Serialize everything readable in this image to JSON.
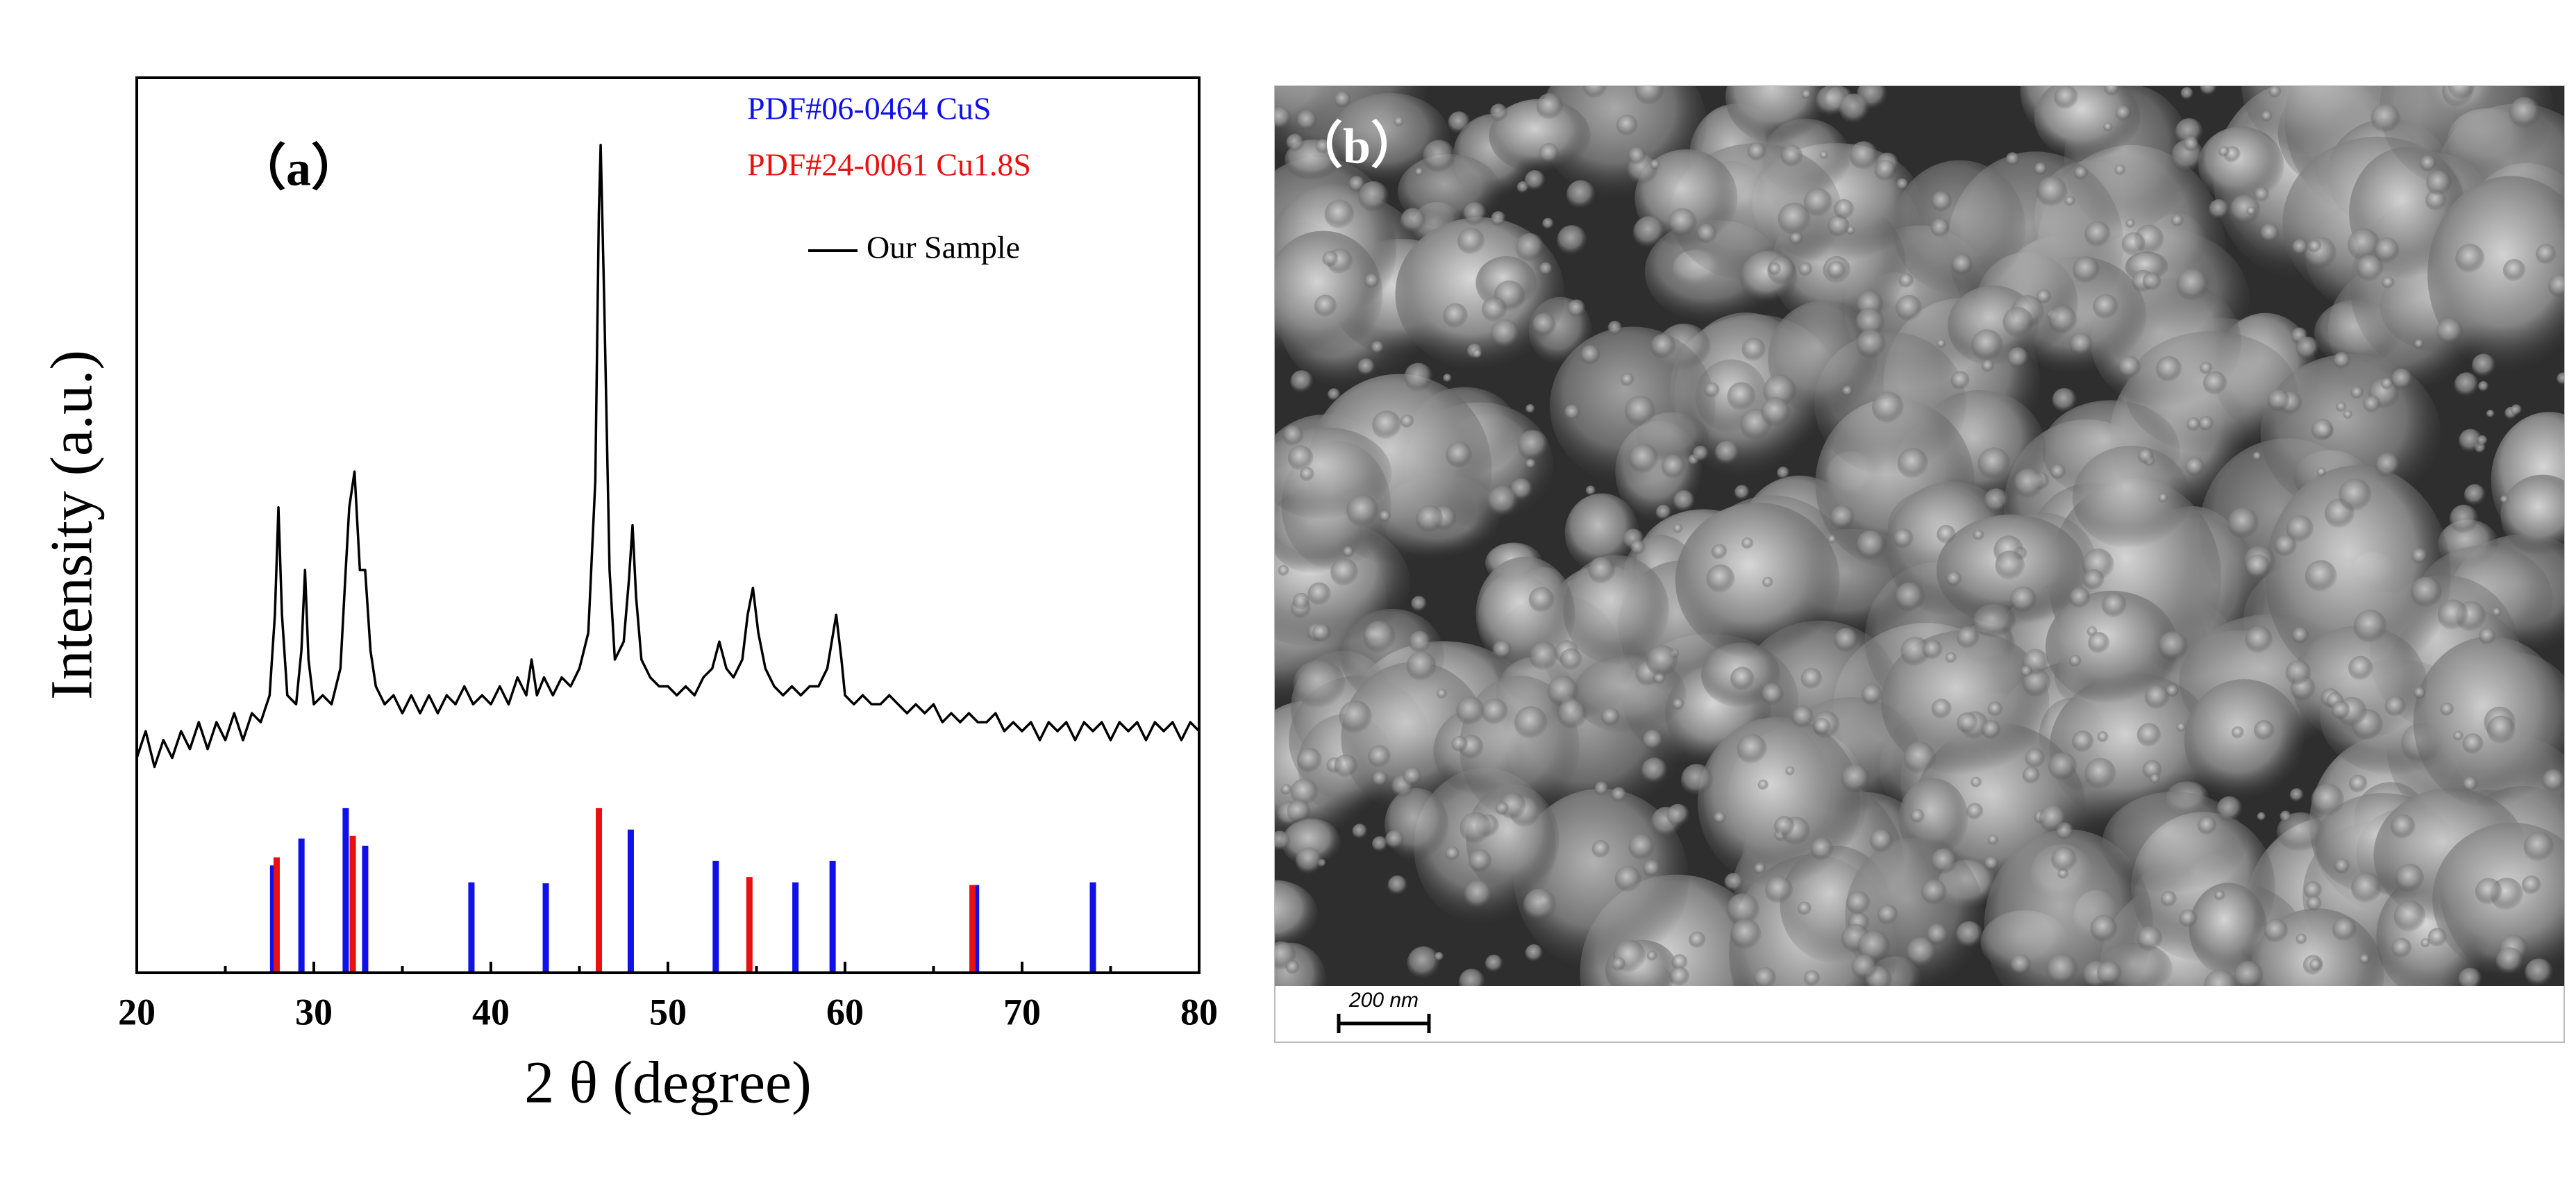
{
  "chart_data": {
    "type": "line",
    "label": "（a）",
    "xlabel": "2 θ (degree)",
    "ylabel": "Intensity (a.u.)",
    "xlim": [
      20,
      80
    ],
    "xticks": [
      20,
      30,
      40,
      50,
      60,
      70,
      80
    ],
    "xminor": [
      25,
      35,
      45,
      55,
      65,
      75
    ],
    "ylim": [
      0,
      100
    ],
    "series": [
      {
        "name": "PDF#06-0464  CuS",
        "color": "#1010e8",
        "kind": "stick",
        "x": [
          27.7,
          29.3,
          31.8,
          32.9,
          38.9,
          43.1,
          47.9,
          52.7,
          57.2,
          59.3,
          67.4,
          74.0
        ],
        "values": [
          12,
          15,
          18.4,
          14.2,
          10.1,
          10,
          16,
          12.5,
          10.1,
          12.5,
          9.8,
          10.1
        ]
      },
      {
        "name": "PDF#24-0061  Cu1.8S",
        "color": "#e81010",
        "kind": "stick",
        "x": [
          27.9,
          32.2,
          46.1,
          54.6,
          67.2
        ],
        "values": [
          12.9,
          15.3,
          18.4,
          10.7,
          9.8
        ]
      },
      {
        "name": "Our Sample",
        "color": "#000000",
        "kind": "line",
        "x": [
          20,
          20.5,
          21,
          21.5,
          22,
          22.5,
          23,
          23.5,
          24,
          24.5,
          25,
          25.5,
          26,
          26.5,
          27,
          27.5,
          27.8,
          28,
          28.2,
          28.5,
          29,
          29.3,
          29.5,
          29.7,
          30,
          30.5,
          31,
          31.5,
          31.8,
          32,
          32.3,
          32.6,
          32.9,
          33.2,
          33.5,
          34,
          34.5,
          35,
          35.5,
          36,
          36.5,
          37,
          37.5,
          38,
          38.5,
          39,
          39.5,
          40,
          40.5,
          41,
          41.5,
          42,
          42.3,
          42.6,
          43,
          43.5,
          44,
          44.5,
          45,
          45.5,
          45.9,
          46.1,
          46.2,
          46.4,
          46.7,
          47,
          47.5,
          47.8,
          48,
          48.2,
          48.5,
          49,
          49.5,
          50,
          50.5,
          51,
          51.5,
          52,
          52.5,
          52.9,
          53.3,
          53.7,
          54.2,
          54.5,
          54.8,
          55.1,
          55.5,
          56,
          56.5,
          57,
          57.5,
          58,
          58.5,
          59,
          59.5,
          59.8,
          60,
          60.5,
          61,
          61.5,
          62,
          62.5,
          63,
          63.5,
          64,
          64.5,
          65,
          65.5,
          66,
          66.5,
          67,
          67.5,
          68,
          68.5,
          69,
          69.5,
          70,
          70.5,
          71,
          71.5,
          72,
          72.5,
          73,
          73.5,
          74,
          74.5,
          75,
          75.5,
          76,
          76.5,
          77,
          77.5,
          78,
          78.5,
          79,
          79.5,
          80
        ],
        "values": [
          24,
          27,
          23,
          26,
          24,
          27,
          25,
          28,
          25,
          28,
          26,
          29,
          26,
          29,
          28,
          31,
          40,
          52,
          40,
          31,
          30,
          36,
          45,
          35,
          30,
          31,
          30,
          34,
          45,
          52,
          56,
          45,
          45,
          36,
          32,
          30,
          31,
          29,
          31,
          29,
          31,
          29,
          31,
          30,
          32,
          30,
          31,
          30,
          32,
          30,
          33,
          31,
          35,
          31,
          33,
          31,
          33,
          32,
          34,
          38,
          55,
          85,
          92.5,
          75,
          45,
          35,
          37,
          44,
          50,
          42,
          35,
          33,
          32,
          32,
          31,
          32,
          31,
          33,
          34,
          37,
          34,
          33,
          35,
          40,
          43,
          38,
          34,
          32,
          31,
          32,
          31,
          32,
          32,
          34,
          40,
          35,
          31,
          30,
          31,
          30,
          30,
          31,
          30,
          29,
          30,
          29,
          30,
          28,
          29,
          28,
          29,
          28,
          28,
          29,
          27,
          28,
          27,
          28,
          26,
          28,
          27,
          28,
          26,
          28,
          27,
          28,
          26,
          28,
          27,
          28,
          26,
          28,
          27,
          28,
          26,
          28,
          27
        ]
      }
    ]
  },
  "image_b": {
    "label": "（b）",
    "scale_bar": "200 nm"
  }
}
